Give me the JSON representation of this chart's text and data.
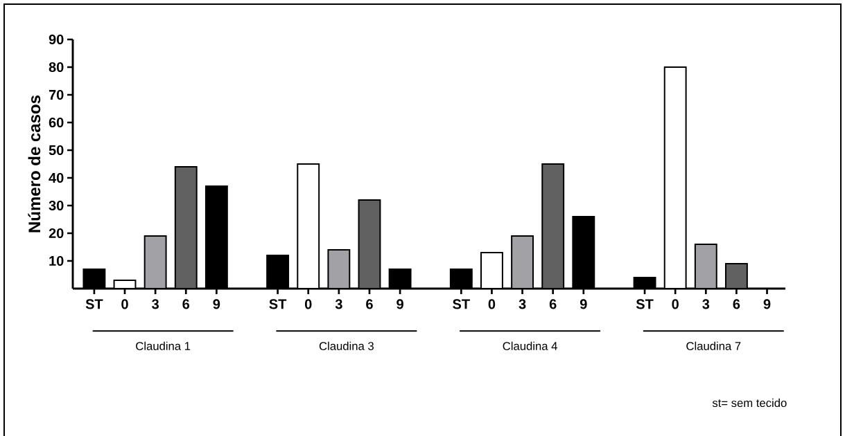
{
  "chart_data": {
    "type": "bar",
    "ylabel": "Número de casos",
    "categories": [
      "ST",
      "0",
      "3",
      "6",
      "9",
      null,
      "ST",
      "0",
      "3",
      "6",
      "9",
      null,
      "ST",
      "0",
      "3",
      "6",
      "9",
      null,
      "ST",
      "0",
      "3",
      "6",
      "9"
    ],
    "values": [
      7,
      3,
      19,
      44,
      37,
      null,
      12,
      45,
      14,
      32,
      7,
      null,
      7,
      13,
      19,
      45,
      26,
      null,
      4,
      80,
      16,
      9,
      0
    ],
    "colors": [
      "#000000",
      "#ffffff",
      "#a2a1a6",
      "#616161",
      "#000000",
      null,
      "#000000",
      "#ffffff",
      "#a2a1a6",
      "#616161",
      "#000000",
      null,
      "#000000",
      "#ffffff",
      "#a2a1a6",
      "#616161",
      "#000000",
      null,
      "#000000",
      "#ffffff",
      "#a2a1a6",
      "#616161",
      "#000000"
    ],
    "ylim": [
      0,
      90
    ],
    "yticks": [
      10,
      20,
      30,
      40,
      50,
      60,
      70,
      80,
      90
    ],
    "annotations": [
      "Claudina 1",
      "Claudina 3",
      "Claudina 4",
      "Claudina 7",
      "st= sem tecido"
    ]
  }
}
